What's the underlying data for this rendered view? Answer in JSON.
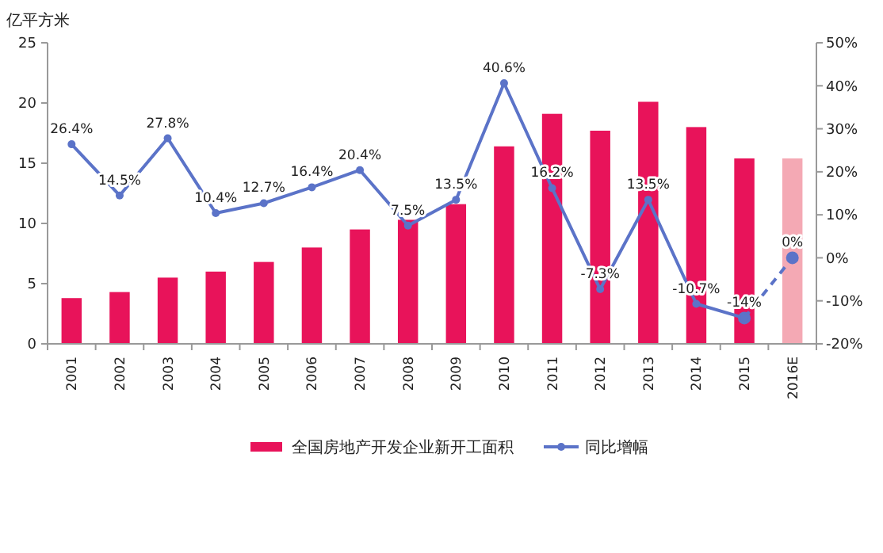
{
  "chart_data": {
    "type": "bar",
    "ylabel": "亿平方米",
    "categories": [
      "2001",
      "2002",
      "2003",
      "2004",
      "2005",
      "2006",
      "2007",
      "2008",
      "2009",
      "2010",
      "2011",
      "2012",
      "2013",
      "2014",
      "2015",
      "2016E"
    ],
    "series": [
      {
        "name": "全国房地产开发企业新开工面积",
        "color": "#e8135a",
        "colors": [
          "#e8135a",
          "#e8135a",
          "#e8135a",
          "#e8135a",
          "#e8135a",
          "#e8135a",
          "#e8135a",
          "#e8135a",
          "#e8135a",
          "#e8135a",
          "#e8135a",
          "#e8135a",
          "#e8135a",
          "#e8135a",
          "#e8135a",
          "#f4a9b4"
        ],
        "values": [
          3.8,
          4.3,
          5.5,
          6.0,
          6.8,
          8.0,
          9.5,
          10.3,
          11.6,
          16.4,
          19.1,
          17.7,
          20.1,
          18.0,
          15.4,
          15.4
        ]
      },
      {
        "type": "line",
        "axis": "y2",
        "color": "#5b73c8",
        "marker": "circle",
        "line_style": "dashed",
        "values": [
          null,
          null,
          null,
          null,
          null,
          null,
          null,
          null,
          null,
          null,
          null,
          null,
          null,
          null,
          -14,
          0
        ],
        "value_labels": [
          null,
          null,
          null,
          null,
          null,
          null,
          null,
          null,
          null,
          null,
          null,
          null,
          null,
          null,
          null,
          "0%"
        ]
      },
      {
        "name": "同比增幅",
        "type": "line",
        "axis": "y2",
        "color": "#5b73c8",
        "marker": "circle",
        "line_style": "solid",
        "values": [
          26.4,
          14.5,
          27.8,
          10.4,
          12.7,
          16.4,
          20.4,
          7.5,
          13.5,
          40.6,
          16.2,
          -7.3,
          13.5,
          -10.7,
          -14,
          null
        ],
        "value_labels": [
          "26.4%",
          "14.5%",
          "27.8%",
          "10.4%",
          "12.7%",
          "16.4%",
          "20.4%",
          "7.5%",
          "13.5%",
          "40.6%",
          "16.2%",
          "-7.3%",
          "13.5%",
          "-10.7%",
          "-14%",
          null
        ]
      }
    ],
    "ylim": [
      0,
      25
    ],
    "yticks": [
      0,
      5,
      10,
      15,
      20,
      25
    ],
    "y2lim": [
      -20,
      50
    ],
    "y2ticks": [
      {
        "value": -20,
        "label": "-20%"
      },
      {
        "value": -10,
        "label": "-10%"
      },
      {
        "value": 0,
        "label": "0%"
      },
      {
        "value": 10,
        "label": "10%"
      },
      {
        "value": 20,
        "label": "20%"
      },
      {
        "value": 30,
        "label": "30%"
      },
      {
        "value": 40,
        "label": "40%"
      },
      {
        "value": 50,
        "label": "50%"
      }
    ],
    "grid": false,
    "legend": "bottom"
  }
}
